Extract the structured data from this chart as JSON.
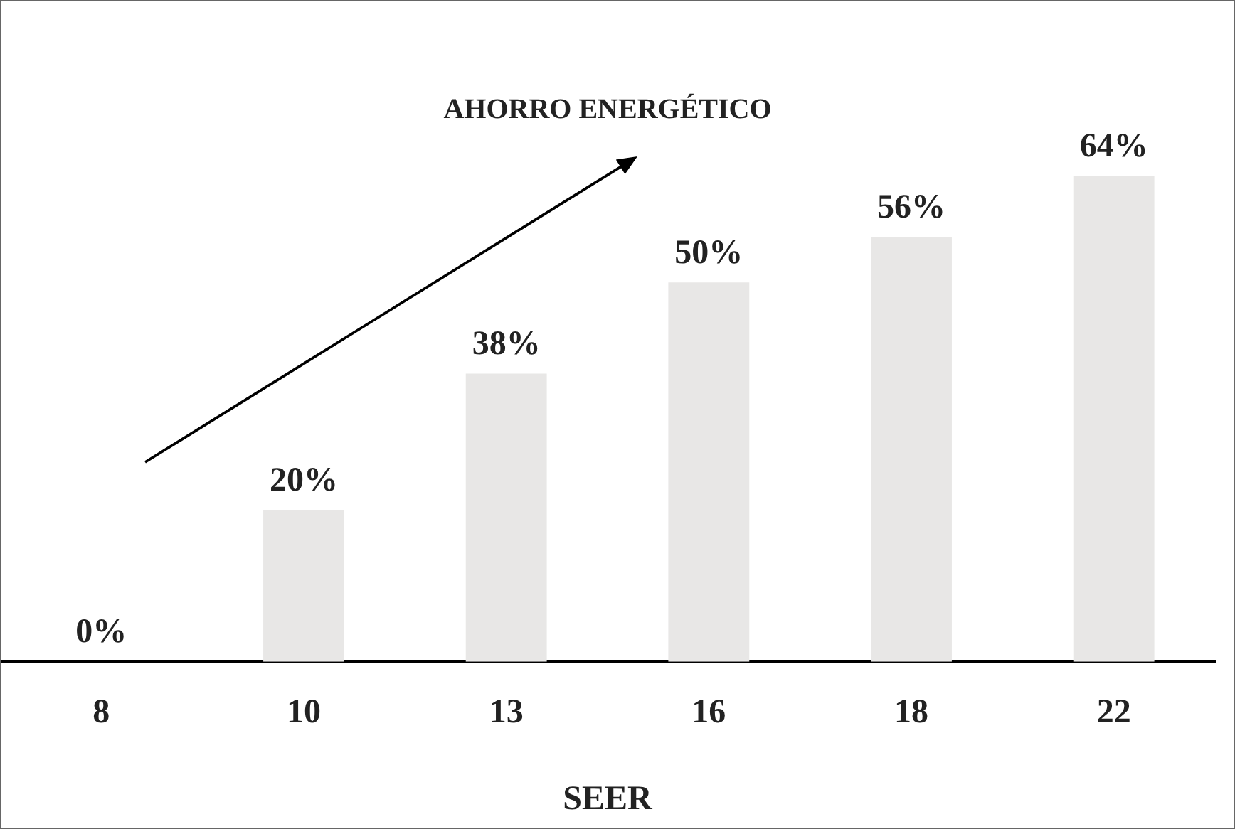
{
  "chart_data": {
    "type": "bar",
    "title": "AHORRO ENERGÉTICO",
    "xlabel": "SEER",
    "categories": [
      "8",
      "10",
      "13",
      "16",
      "18",
      "22"
    ],
    "values": [
      0,
      20,
      38,
      50,
      56,
      64
    ],
    "value_labels": [
      "0%",
      "20%",
      "38%",
      "50%",
      "56%",
      "64%"
    ],
    "color": "#e8e7e6",
    "tick_labels": "x",
    "grid": false,
    "legend": false
  }
}
